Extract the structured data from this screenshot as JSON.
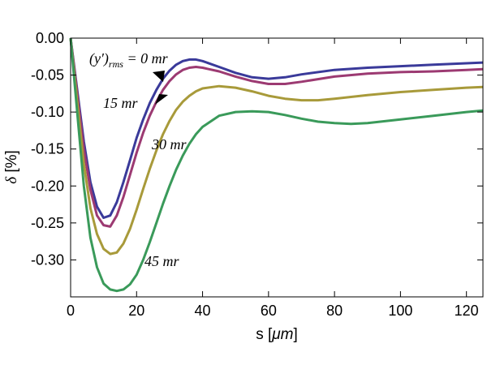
{
  "chart_data": {
    "type": "line",
    "xlabel_text": "s [",
    "xlabel_unit": "μm",
    "xlabel_close": "]",
    "ylabel_symbol": "δ",
    "ylabel_unit": " [%]",
    "xlim": [
      0,
      125
    ],
    "ylim": [
      -0.35,
      0.0
    ],
    "grid": false,
    "x_ticks": [
      0,
      20,
      40,
      60,
      80,
      100,
      120
    ],
    "x_tick_labels": [
      "0",
      "20",
      "40",
      "60",
      "80",
      "100",
      "120"
    ],
    "y_ticks": [
      0.0,
      -0.05,
      -0.1,
      -0.15,
      -0.2,
      -0.25,
      -0.3
    ],
    "y_tick_labels": [
      "0.00",
      "-0.05",
      "-0.10",
      "-0.15",
      "-0.20",
      "-0.25",
      "-0.30"
    ],
    "series": [
      {
        "color": "#3a3a9a",
        "label": "0 mr",
        "points": [
          [
            0,
            0.0
          ],
          [
            2,
            -0.07
          ],
          [
            4,
            -0.14
          ],
          [
            6,
            -0.195
          ],
          [
            8,
            -0.228
          ],
          [
            10,
            -0.243
          ],
          [
            12,
            -0.24
          ],
          [
            14,
            -0.222
          ],
          [
            16,
            -0.195
          ],
          [
            18,
            -0.165
          ],
          [
            20,
            -0.135
          ],
          [
            22,
            -0.11
          ],
          [
            24,
            -0.088
          ],
          [
            26,
            -0.07
          ],
          [
            28,
            -0.055
          ],
          [
            30,
            -0.044
          ],
          [
            32,
            -0.036
          ],
          [
            34,
            -0.031
          ],
          [
            36,
            -0.029
          ],
          [
            38,
            -0.029
          ],
          [
            40,
            -0.031
          ],
          [
            45,
            -0.039
          ],
          [
            50,
            -0.047
          ],
          [
            55,
            -0.053
          ],
          [
            60,
            -0.055
          ],
          [
            65,
            -0.053
          ],
          [
            70,
            -0.049
          ],
          [
            80,
            -0.043
          ],
          [
            90,
            -0.04
          ],
          [
            100,
            -0.038
          ],
          [
            110,
            -0.036
          ],
          [
            120,
            -0.034
          ],
          [
            125,
            -0.033
          ]
        ]
      },
      {
        "color": "#9c3a72",
        "label": "15 mr",
        "points": [
          [
            0,
            0.0
          ],
          [
            2,
            -0.075
          ],
          [
            4,
            -0.15
          ],
          [
            6,
            -0.205
          ],
          [
            8,
            -0.24
          ],
          [
            10,
            -0.253
          ],
          [
            12,
            -0.255
          ],
          [
            14,
            -0.24
          ],
          [
            16,
            -0.215
          ],
          [
            18,
            -0.185
          ],
          [
            20,
            -0.155
          ],
          [
            22,
            -0.128
          ],
          [
            24,
            -0.105
          ],
          [
            26,
            -0.086
          ],
          [
            28,
            -0.07
          ],
          [
            30,
            -0.058
          ],
          [
            32,
            -0.049
          ],
          [
            34,
            -0.043
          ],
          [
            36,
            -0.04
          ],
          [
            38,
            -0.039
          ],
          [
            40,
            -0.04
          ],
          [
            45,
            -0.045
          ],
          [
            50,
            -0.052
          ],
          [
            55,
            -0.058
          ],
          [
            60,
            -0.062
          ],
          [
            65,
            -0.062
          ],
          [
            70,
            -0.059
          ],
          [
            80,
            -0.052
          ],
          [
            90,
            -0.048
          ],
          [
            100,
            -0.046
          ],
          [
            110,
            -0.045
          ],
          [
            120,
            -0.043
          ],
          [
            125,
            -0.042
          ]
        ]
      },
      {
        "color": "#a89a3a",
        "label": "30 mr",
        "points": [
          [
            0,
            0.0
          ],
          [
            2,
            -0.085
          ],
          [
            4,
            -0.17
          ],
          [
            6,
            -0.23
          ],
          [
            8,
            -0.265
          ],
          [
            10,
            -0.285
          ],
          [
            12,
            -0.292
          ],
          [
            14,
            -0.29
          ],
          [
            16,
            -0.278
          ],
          [
            18,
            -0.258
          ],
          [
            20,
            -0.232
          ],
          [
            22,
            -0.204
          ],
          [
            24,
            -0.177
          ],
          [
            26,
            -0.152
          ],
          [
            28,
            -0.13
          ],
          [
            30,
            -0.112
          ],
          [
            32,
            -0.097
          ],
          [
            34,
            -0.086
          ],
          [
            36,
            -0.078
          ],
          [
            38,
            -0.072
          ],
          [
            40,
            -0.068
          ],
          [
            45,
            -0.065
          ],
          [
            50,
            -0.067
          ],
          [
            55,
            -0.072
          ],
          [
            60,
            -0.078
          ],
          [
            65,
            -0.082
          ],
          [
            70,
            -0.084
          ],
          [
            75,
            -0.084
          ],
          [
            80,
            -0.082
          ],
          [
            90,
            -0.077
          ],
          [
            100,
            -0.073
          ],
          [
            110,
            -0.07
          ],
          [
            120,
            -0.067
          ],
          [
            125,
            -0.066
          ]
        ]
      },
      {
        "color": "#3a9a5a",
        "label": "45 mr",
        "points": [
          [
            0,
            0.0
          ],
          [
            2,
            -0.1
          ],
          [
            4,
            -0.2
          ],
          [
            6,
            -0.27
          ],
          [
            8,
            -0.31
          ],
          [
            10,
            -0.332
          ],
          [
            12,
            -0.34
          ],
          [
            14,
            -0.342
          ],
          [
            16,
            -0.34
          ],
          [
            18,
            -0.333
          ],
          [
            20,
            -0.32
          ],
          [
            22,
            -0.3
          ],
          [
            24,
            -0.276
          ],
          [
            26,
            -0.25
          ],
          [
            28,
            -0.224
          ],
          [
            30,
            -0.2
          ],
          [
            32,
            -0.178
          ],
          [
            34,
            -0.159
          ],
          [
            36,
            -0.143
          ],
          [
            38,
            -0.13
          ],
          [
            40,
            -0.12
          ],
          [
            45,
            -0.105
          ],
          [
            50,
            -0.1
          ],
          [
            55,
            -0.099
          ],
          [
            60,
            -0.1
          ],
          [
            65,
            -0.104
          ],
          [
            70,
            -0.109
          ],
          [
            75,
            -0.113
          ],
          [
            80,
            -0.115
          ],
          [
            85,
            -0.116
          ],
          [
            90,
            -0.115
          ],
          [
            100,
            -0.11
          ],
          [
            110,
            -0.105
          ],
          [
            120,
            -0.1
          ],
          [
            125,
            -0.098
          ]
        ]
      }
    ],
    "annotations": {
      "main_prefix": "(y′)",
      "main_sub": "rms",
      "main_suffix": " = 0 mr",
      "label_15": "15 mr",
      "label_30": "30 mr",
      "label_45": "45 mr"
    }
  }
}
